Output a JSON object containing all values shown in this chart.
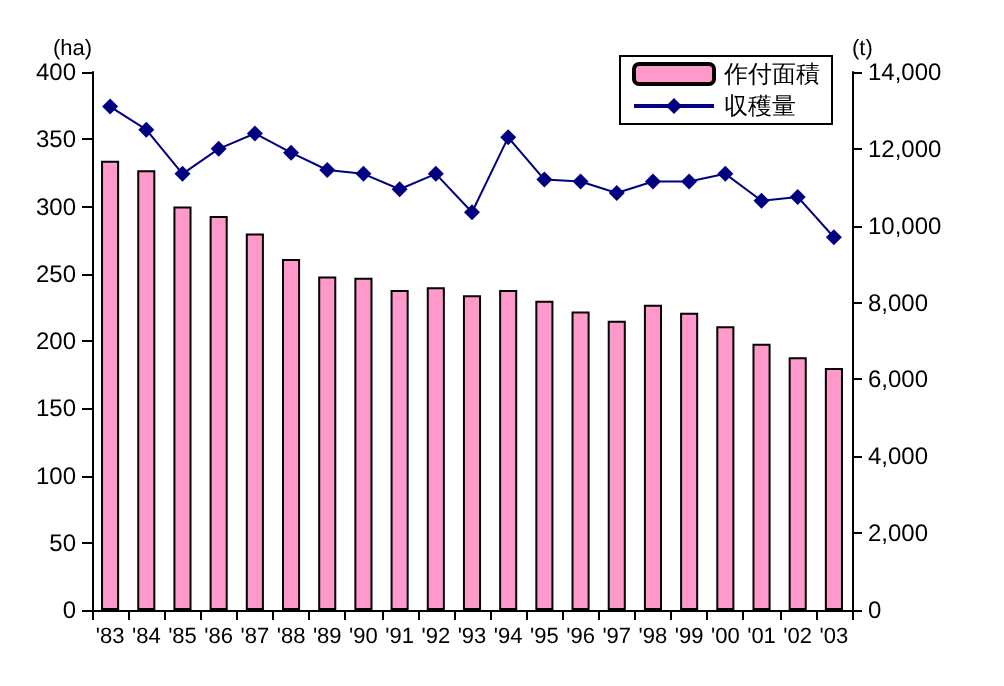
{
  "chart_data": {
    "type": "bar",
    "xlabel": null,
    "ylabel": "(ha)",
    "y2label": "(t)",
    "categories": [
      "'83",
      "'84",
      "'85",
      "'86",
      "'87",
      "'88",
      "'89",
      "'90",
      "'91",
      "'92",
      "'93",
      "'94",
      "'95",
      "'96",
      "'97",
      "'98",
      "'99",
      "'00",
      "'01",
      "'02",
      "'03"
    ],
    "series": [
      {
        "name": "作付面積",
        "color": "#ff99cc",
        "values": [
          334,
          327,
          300,
          293,
          280,
          261,
          248,
          247,
          238,
          240,
          234,
          238,
          230,
          222,
          215,
          227,
          221,
          211,
          198,
          188,
          180
        ]
      },
      {
        "name": "収穫量",
        "type": "line",
        "axis": "y2",
        "color": "#000080",
        "values": [
          13100,
          12500,
          11350,
          12000,
          12400,
          11900,
          11450,
          11350,
          10950,
          11350,
          10350,
          12300,
          11200,
          11150,
          10850,
          11150,
          11150,
          11350,
          10650,
          10750,
          9700
        ]
      }
    ],
    "ylim": [
      0,
      400
    ],
    "yticks": [
      0,
      50,
      100,
      150,
      200,
      250,
      300,
      350,
      400
    ],
    "y2lim": [
      0,
      14000
    ],
    "y2ticks": [
      {
        "value": 0,
        "label": "0"
      },
      {
        "value": 2000,
        "label": "2,000"
      },
      {
        "value": 4000,
        "label": "4,000"
      },
      {
        "value": 6000,
        "label": "6,000"
      },
      {
        "value": 8000,
        "label": "8,000"
      },
      {
        "value": 10000,
        "label": "10,000"
      },
      {
        "value": 12000,
        "label": "12,000"
      },
      {
        "value": 14000,
        "label": "14,000"
      }
    ],
    "grid": false,
    "legend": "top right",
    "marker": "diamond"
  }
}
